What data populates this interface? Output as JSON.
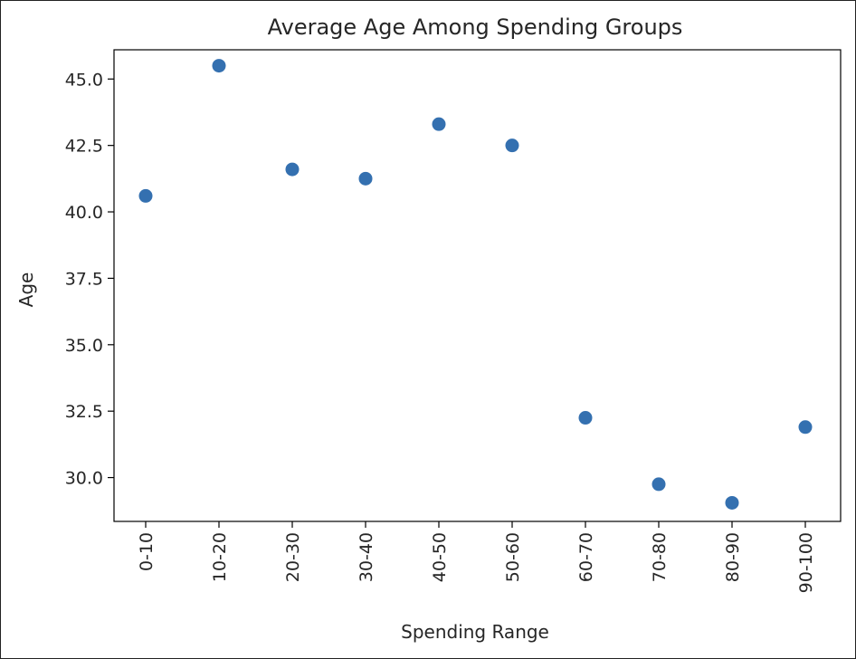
{
  "chart_data": {
    "type": "scatter",
    "title": "Average Age Among Spending Groups",
    "xlabel": "Spending Range",
    "ylabel": "Age",
    "categories": [
      "0-10",
      "10-20",
      "20-30",
      "30-40",
      "40-50",
      "50-60",
      "60-70",
      "70-80",
      "80-90",
      "90-100"
    ],
    "series": [
      {
        "values": [
          40.6,
          45.5,
          41.6,
          41.25,
          43.3,
          42.5,
          32.25,
          29.75,
          29.05,
          31.9
        ],
        "color": "#3470b0"
      }
    ],
    "ylim": [
      28.35,
      46.1
    ],
    "yticks": [
      30.0,
      32.5,
      35.0,
      37.5,
      40.0,
      42.5,
      45.0
    ],
    "ytick_labels": [
      "30.0",
      "32.5",
      "35.0",
      "37.5",
      "40.0",
      "42.5",
      "45.0"
    ],
    "xtick_rotation": -90,
    "grid": false,
    "legend": "none"
  }
}
